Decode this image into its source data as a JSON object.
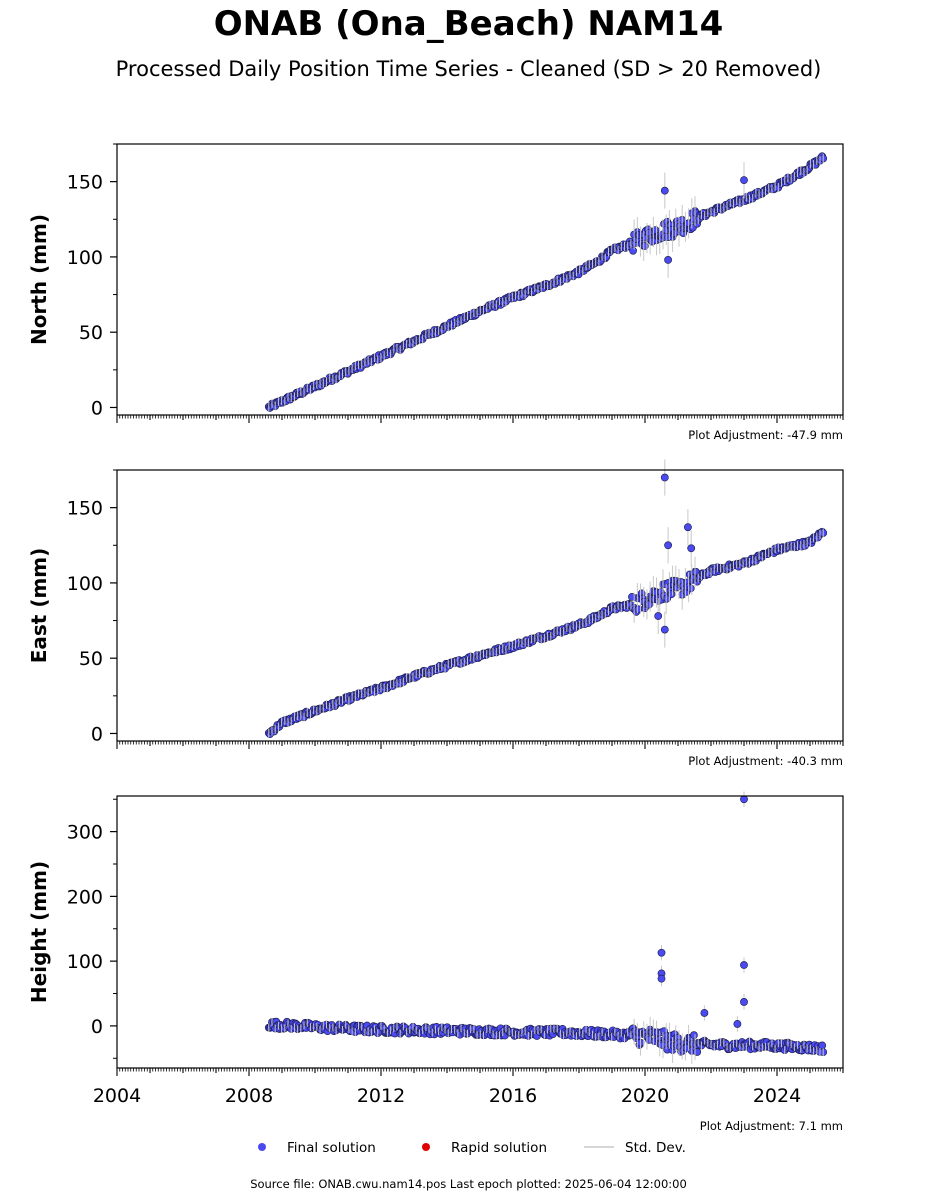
{
  "title": "ONAB (Ona_Beach) NAM14",
  "subtitle": "Processed Daily Position Time Series - Cleaned (SD > 20 Removed)",
  "footer": "Source file: ONAB.cwu.nam14.pos  Last epoch plotted: 2025-06-04 12:00:00",
  "colors": {
    "final": "#4a4af0",
    "rapid": "#e00000",
    "stddev": "#c8c8c8"
  },
  "legend": [
    {
      "label": "Final solution",
      "kind": "final"
    },
    {
      "label": "Rapid solution",
      "kind": "rapid"
    },
    {
      "label": "Std. Dev.",
      "kind": "stddev"
    }
  ],
  "chart_data": [
    {
      "type": "scatter",
      "ylabel": "North (mm)",
      "xlim": [
        2004,
        2026
      ],
      "ylim": [
        -5,
        175
      ],
      "yticks": [
        0,
        50,
        100,
        150
      ],
      "adjustment": "Plot Adjustment: -47.9 mm",
      "series": [
        {
          "name": "Final solution",
          "x": [
            2008.6,
            2009.0,
            2010.0,
            2011.0,
            2012.0,
            2013.0,
            2014.0,
            2015.0,
            2016.0,
            2017.0,
            2018.0,
            2018.5,
            2019.0,
            2019.7,
            2020.2,
            2020.6,
            2021.0,
            2021.5,
            2022.0,
            2023.0,
            2024.0,
            2025.0,
            2025.4
          ],
          "y": [
            0,
            4,
            14,
            24,
            34,
            44,
            54,
            64,
            73,
            81,
            90,
            96,
            104,
            110,
            115,
            118,
            120,
            125,
            130,
            138,
            147,
            160,
            166
          ]
        },
        {
          "name": "Final solution outliers",
          "x": [
            2020.6,
            2020.7,
            2023.0
          ],
          "y": [
            144,
            98,
            151
          ]
        }
      ]
    },
    {
      "type": "scatter",
      "ylabel": "East (mm)",
      "xlim": [
        2004,
        2026
      ],
      "ylim": [
        -5,
        175
      ],
      "yticks": [
        0,
        50,
        100,
        150
      ],
      "adjustment": "Plot Adjustment: -40.3 mm",
      "series": [
        {
          "name": "Final solution",
          "x": [
            2008.6,
            2009.0,
            2010.0,
            2011.0,
            2012.0,
            2013.0,
            2014.0,
            2015.0,
            2016.0,
            2017.0,
            2018.0,
            2018.5,
            2019.0,
            2019.7,
            2020.2,
            2020.6,
            2021.0,
            2021.5,
            2022.0,
            2023.0,
            2024.0,
            2025.0,
            2025.4
          ],
          "y": [
            0,
            7,
            15,
            23,
            30,
            38,
            45,
            52,
            58,
            65,
            72,
            77,
            83,
            86,
            91,
            95,
            96,
            102,
            108,
            113,
            122,
            127,
            134
          ]
        },
        {
          "name": "Final solution outliers",
          "x": [
            2020.6,
            2020.7,
            2021.3,
            2021.4,
            2020.4,
            2020.6
          ],
          "y": [
            170,
            125,
            137,
            123,
            78,
            69
          ]
        }
      ]
    },
    {
      "type": "scatter",
      "ylabel": "Height (mm)",
      "xlim": [
        2004,
        2026
      ],
      "ylim": [
        -65,
        355
      ],
      "yticks": [
        0,
        100,
        200,
        300
      ],
      "xticks": [
        2004,
        2008,
        2012,
        2016,
        2020,
        2024
      ],
      "adjustment": "Plot Adjustment: 7.1 mm",
      "series": [
        {
          "name": "Final solution",
          "x": [
            2008.6,
            2009.5,
            2010.5,
            2011.5,
            2012.5,
            2013.5,
            2014.5,
            2015.5,
            2016.5,
            2017.5,
            2018.5,
            2019.5,
            2020.3,
            2020.8,
            2021.5,
            2022.5,
            2023.5,
            2024.5,
            2025.4
          ],
          "y": [
            2,
            0,
            -3,
            -5,
            -6,
            -7,
            -8,
            -9,
            -10,
            -10,
            -12,
            -14,
            -18,
            -25,
            -28,
            -30,
            -30,
            -32,
            -35
          ]
        },
        {
          "name": "Final solution outliers",
          "x": [
            2020.5,
            2020.5,
            2020.5,
            2023.0,
            2023.0,
            2023.0,
            2021.8,
            2022.8
          ],
          "y": [
            113,
            81,
            73,
            350,
            94,
            37,
            20,
            3
          ]
        }
      ]
    }
  ]
}
